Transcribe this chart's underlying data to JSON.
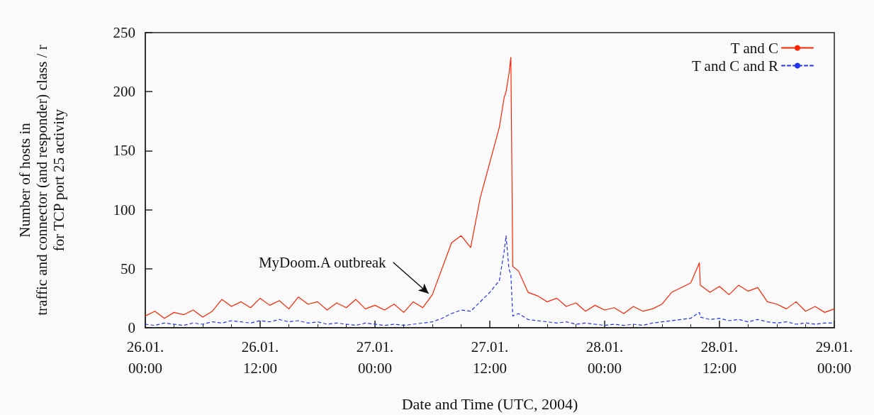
{
  "chart_data": {
    "type": "line",
    "xlabel": "Date and Time (UTC, 2004)",
    "ylabel": "Number of hosts in\ntraffic and connector (and responder) class / r\nfor TCP port 25 activity",
    "x": [
      "2004-01-26T00:00",
      "2004-01-26T01:00",
      "2004-01-26T02:00",
      "2004-01-26T03:00",
      "2004-01-26T04:00",
      "2004-01-26T05:00",
      "2004-01-26T06:00",
      "2004-01-26T07:00",
      "2004-01-26T08:00",
      "2004-01-26T09:00",
      "2004-01-26T10:00",
      "2004-01-26T11:00",
      "2004-01-26T12:00",
      "2004-01-26T13:00",
      "2004-01-26T14:00",
      "2004-01-26T15:00",
      "2004-01-26T16:00",
      "2004-01-26T17:00",
      "2004-01-26T18:00",
      "2004-01-26T19:00",
      "2004-01-26T20:00",
      "2004-01-26T21:00",
      "2004-01-26T22:00",
      "2004-01-26T23:00",
      "2004-01-27T00:00",
      "2004-01-27T01:00",
      "2004-01-27T02:00",
      "2004-01-27T03:00",
      "2004-01-27T04:00",
      "2004-01-27T05:00",
      "2004-01-27T06:00",
      "2004-01-27T07:00",
      "2004-01-27T08:00",
      "2004-01-27T09:00",
      "2004-01-27T10:00",
      "2004-01-27T11:00",
      "2004-01-27T12:00",
      "2004-01-27T13:00",
      "2004-01-27T13:30",
      "2004-01-27T13:42",
      "2004-01-27T14:00",
      "2004-01-27T14:12",
      "2004-01-27T14:24",
      "2004-01-27T15:00",
      "2004-01-27T16:00",
      "2004-01-27T17:00",
      "2004-01-27T18:00",
      "2004-01-27T19:00",
      "2004-01-27T20:00",
      "2004-01-27T21:00",
      "2004-01-27T22:00",
      "2004-01-27T23:00",
      "2004-01-28T00:00",
      "2004-01-28T01:00",
      "2004-01-28T02:00",
      "2004-01-28T03:00",
      "2004-01-28T04:00",
      "2004-01-28T05:00",
      "2004-01-28T06:00",
      "2004-01-28T07:00",
      "2004-01-28T08:00",
      "2004-01-28T09:00",
      "2004-01-28T09:54",
      "2004-01-28T10:00",
      "2004-01-28T11:00",
      "2004-01-28T12:00",
      "2004-01-28T13:00",
      "2004-01-28T14:00",
      "2004-01-28T15:00",
      "2004-01-28T16:00",
      "2004-01-28T17:00",
      "2004-01-28T18:00",
      "2004-01-28T19:00",
      "2004-01-28T20:00",
      "2004-01-28T21:00",
      "2004-01-28T22:00",
      "2004-01-28T23:00",
      "2004-01-29T00:00"
    ],
    "series": [
      {
        "name": "T and C",
        "color": "#ff2200",
        "line_style": "solid",
        "values": [
          10,
          14,
          8,
          13,
          11,
          15,
          9,
          14,
          24,
          18,
          22,
          17,
          25,
          19,
          23,
          16,
          26,
          20,
          22,
          15,
          21,
          17,
          24,
          16,
          19,
          15,
          20,
          13,
          22,
          17,
          28,
          50,
          72,
          78,
          68,
          110,
          140,
          170,
          195,
          200,
          215,
          229,
          52,
          48,
          30,
          27,
          22,
          25,
          18,
          21,
          14,
          19,
          15,
          17,
          12,
          18,
          14,
          16,
          20,
          30,
          34,
          38,
          55,
          36,
          30,
          35,
          28,
          36,
          31,
          34,
          22,
          20,
          16,
          22,
          14,
          18,
          13,
          16
        ]
      },
      {
        "name": "T and C and R",
        "color": "#2233ee",
        "line_style": "dashed",
        "values": [
          3,
          2,
          4,
          3,
          2,
          4,
          3,
          5,
          4,
          6,
          5,
          4,
          6,
          5,
          7,
          5,
          6,
          4,
          5,
          3,
          4,
          3,
          2,
          4,
          3,
          2,
          3,
          2,
          3,
          4,
          5,
          8,
          12,
          15,
          14,
          22,
          30,
          40,
          65,
          78,
          50,
          45,
          10,
          12,
          7,
          6,
          5,
          4,
          5,
          3,
          4,
          3,
          2,
          3,
          2,
          3,
          2,
          4,
          5,
          6,
          7,
          8,
          13,
          9,
          7,
          8,
          6,
          7,
          5,
          7,
          5,
          4,
          5,
          3,
          4,
          3,
          4,
          4
        ]
      }
    ],
    "xlim": [
      "2004-01-26T00:00",
      "2004-01-29T00:00"
    ],
    "xticks": [
      {
        "value": "2004-01-26T00:00",
        "label": "26.01.\n00:00"
      },
      {
        "value": "2004-01-26T12:00",
        "label": "26.01.\n12:00"
      },
      {
        "value": "2004-01-27T00:00",
        "label": "27.01.\n00:00"
      },
      {
        "value": "2004-01-27T12:00",
        "label": "27.01.\n12:00"
      },
      {
        "value": "2004-01-28T00:00",
        "label": "28.01.\n00:00"
      },
      {
        "value": "2004-01-28T12:00",
        "label": "28.01.\n12:00"
      },
      {
        "value": "2004-01-29T00:00",
        "label": "29.01.\n00:00"
      }
    ],
    "ylim": [
      0,
      250
    ],
    "yticks": [
      0,
      50,
      100,
      150,
      200,
      250
    ],
    "annotations": [
      {
        "text": "MyDoom.A outbreak",
        "x": "2004-01-27T05:36",
        "y": 29
      }
    ],
    "legend": "top right",
    "marker": "none",
    "grid": false
  }
}
